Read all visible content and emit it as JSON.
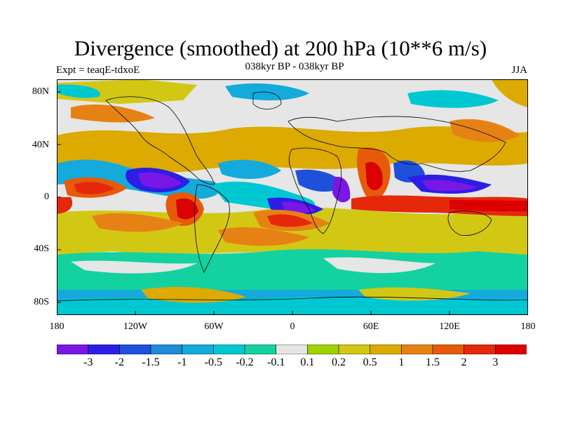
{
  "title": "Divergence (smoothed) at 200 hPa (10**6 m/s)",
  "experiment": "Expt = teaqE-tdxoE",
  "period": "038kyr BP - 038kyr BP",
  "season": "JJA",
  "lat_labels": [
    "80N",
    "40N",
    "0",
    "40S",
    "80S"
  ],
  "lon_labels": [
    "180",
    "120W",
    "60W",
    "0",
    "60E",
    "120E",
    "180"
  ],
  "colorbar": {
    "colors": [
      "#7a17e6",
      "#2d1ee6",
      "#1e50dc",
      "#1e8cd7",
      "#14aadc",
      "#00c8d2",
      "#14d2a0",
      "#e6e6e6",
      "#a0d200",
      "#d2c814",
      "#dcaa00",
      "#e68214",
      "#e65a0a",
      "#e6280a",
      "#dc0000"
    ],
    "labels": [
      "-3",
      "-2",
      "-1.5",
      "-1",
      "-0.5",
      "-0.2",
      "-0.1",
      "0.1",
      "0.2",
      "0.5",
      "1",
      "1.5",
      "2",
      "3"
    ]
  }
}
